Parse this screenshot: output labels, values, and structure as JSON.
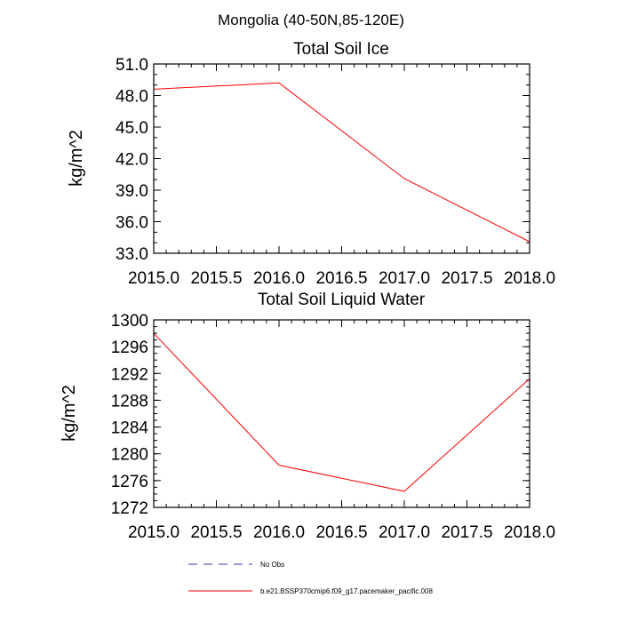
{
  "figure_title": "Mongolia (40-50N,85-120E)",
  "colors": {
    "model_line": "#ff0000",
    "obs_line": "#3333aa",
    "axis": "#000000",
    "background": "#ffffff"
  },
  "legend": {
    "obs_label": "No Obs",
    "model_label": "b.e21.BSSP370cmip6.f09_g17.pacemaker_pacific.008"
  },
  "chart_data": [
    {
      "type": "line",
      "title": "Total Soil Ice",
      "xlabel": "",
      "ylabel": "kg/m^2",
      "xlim": [
        2015.0,
        2018.0
      ],
      "ylim": [
        33.0,
        51.0
      ],
      "x_ticks": [
        2015.0,
        2015.5,
        2016.0,
        2016.5,
        2017.0,
        2017.5,
        2018.0
      ],
      "x_tick_labels": [
        "2015.0",
        "2015.5",
        "2016.0",
        "2016.5",
        "2017.0",
        "2017.5",
        "2018.0"
      ],
      "y_ticks": [
        33.0,
        36.0,
        39.0,
        42.0,
        45.0,
        48.0,
        51.0
      ],
      "y_tick_labels": [
        "33.0",
        "36.0",
        "39.0",
        "42.0",
        "45.0",
        "48.0",
        "51.0"
      ],
      "y_minor_step": 1.0,
      "x_minor_step": 0.1,
      "series": [
        {
          "name": "b.e21.BSSP370cmip6.f09_g17.pacemaker_pacific.008",
          "x": [
            2015,
            2016,
            2017,
            2018
          ],
          "values": [
            48.6,
            49.2,
            40.1,
            34.1
          ]
        }
      ]
    },
    {
      "type": "line",
      "title": "Total Soil Liquid Water",
      "xlabel": "",
      "ylabel": "kg/m^2",
      "xlim": [
        2015.0,
        2018.0
      ],
      "ylim": [
        1272,
        1300
      ],
      "x_ticks": [
        2015.0,
        2015.5,
        2016.0,
        2016.5,
        2017.0,
        2017.5,
        2018.0
      ],
      "x_tick_labels": [
        "2015.0",
        "2015.5",
        "2016.0",
        "2016.5",
        "2017.0",
        "2017.5",
        "2018.0"
      ],
      "y_ticks": [
        1272,
        1276,
        1280,
        1284,
        1288,
        1292,
        1296,
        1300
      ],
      "y_tick_labels": [
        "1272",
        "1276",
        "1280",
        "1284",
        "1288",
        "1292",
        "1296",
        "1300"
      ],
      "y_minor_step": 1,
      "x_minor_step": 0.1,
      "series": [
        {
          "name": "b.e21.BSSP370cmip6.f09_g17.pacemaker_pacific.008",
          "x": [
            2015,
            2016,
            2017,
            2018
          ],
          "values": [
            1298.0,
            1278.3,
            1274.4,
            1291.2
          ]
        }
      ]
    }
  ]
}
